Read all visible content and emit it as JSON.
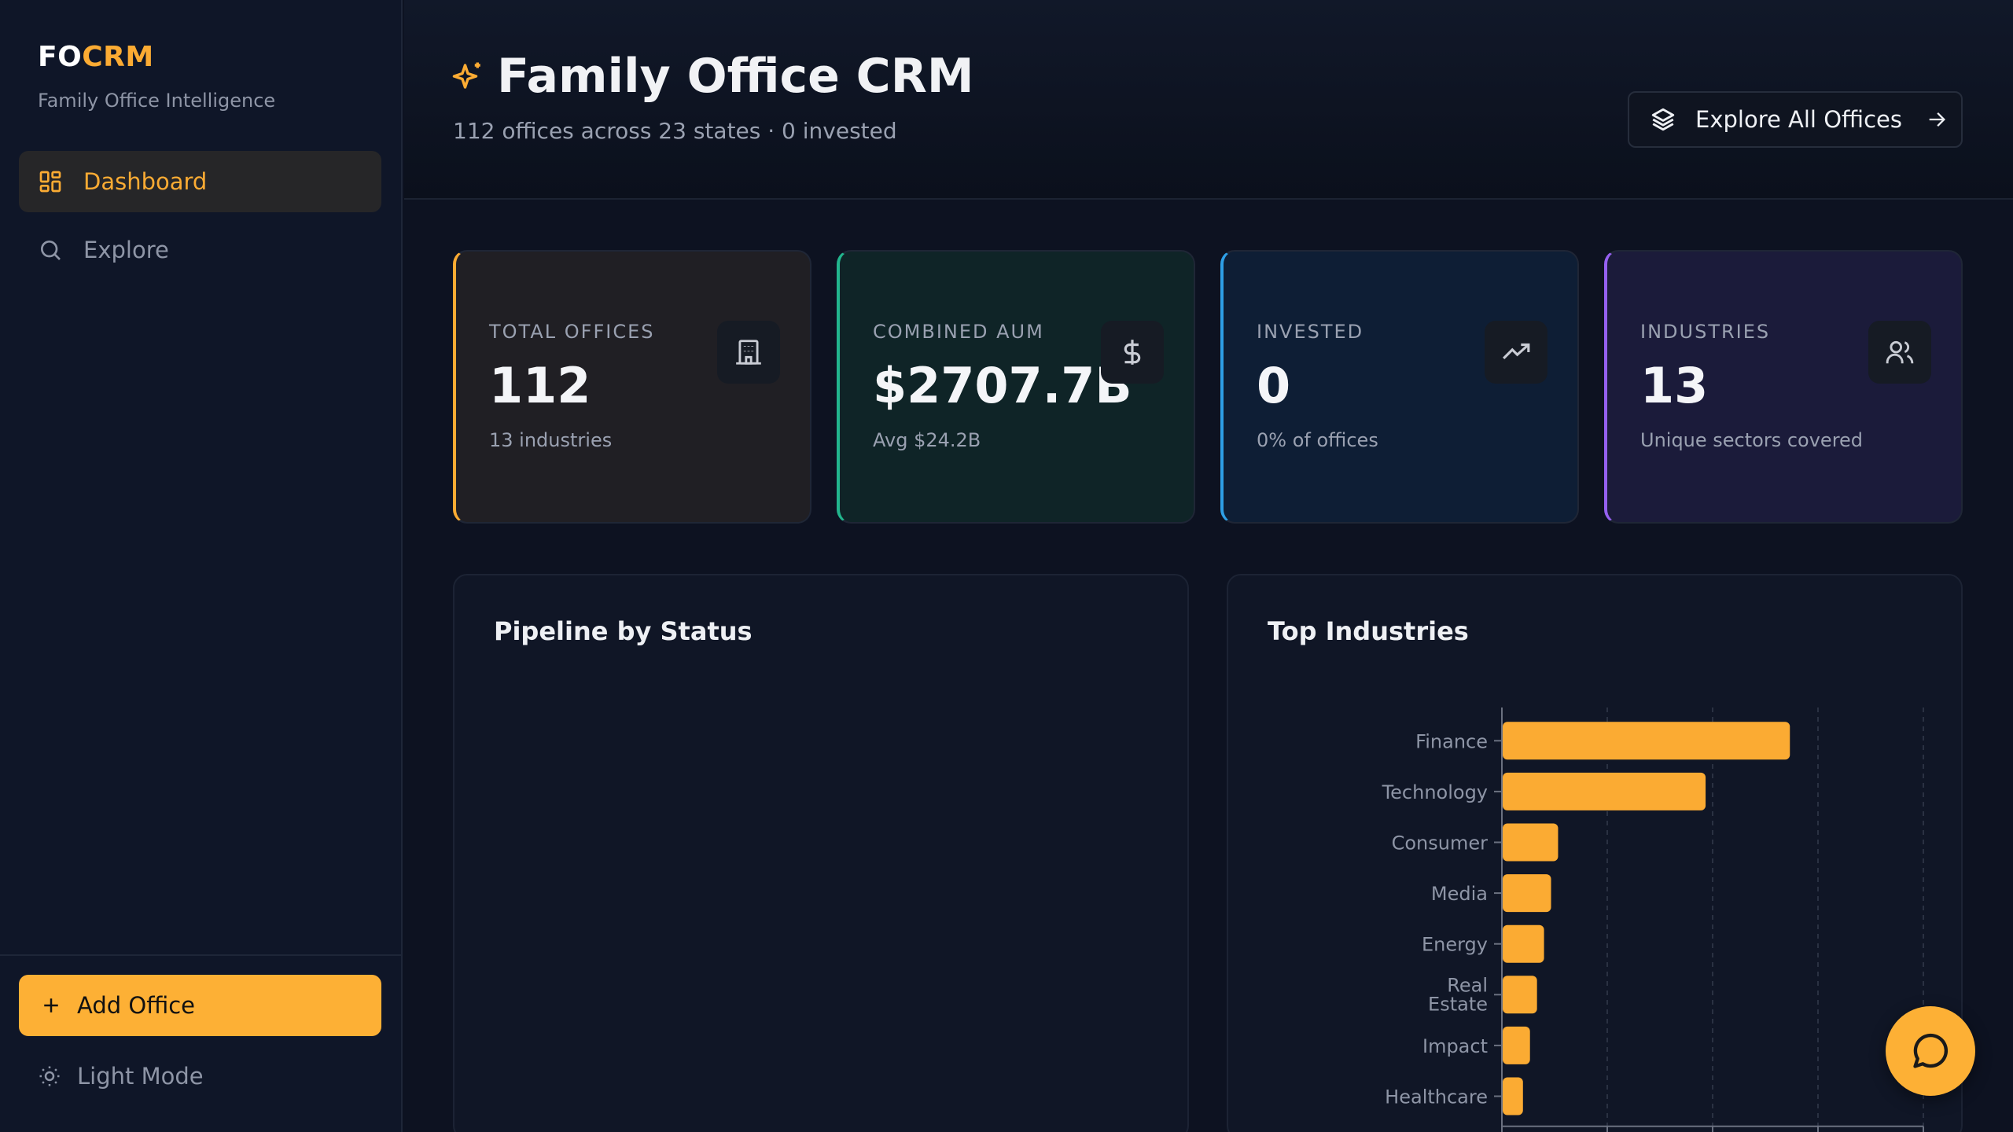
{
  "sidebar": {
    "brand_prefix": "FO",
    "brand_suffix": "CRM",
    "brand_subtitle": "Family Office Intelligence",
    "nav": [
      {
        "label": "Dashboard",
        "icon": "grid-icon",
        "active": true
      },
      {
        "label": "Explore",
        "icon": "search-icon",
        "active": false
      }
    ],
    "add_button": "Add Office",
    "theme_toggle": "Light Mode"
  },
  "header": {
    "title": "Family Office CRM",
    "subtitle": "112 offices across 23 states · 0 invested",
    "explore_button": "Explore All Offices"
  },
  "stats": [
    {
      "label": "TOTAL OFFICES",
      "value": "112",
      "sub": "13 industries",
      "icon": "building-icon",
      "accent": "#fbab33"
    },
    {
      "label": "COMBINED AUM",
      "value": "$2707.7B",
      "sub": "Avg $24.2B",
      "icon": "dollar-icon",
      "accent": "#22b58d"
    },
    {
      "label": "INVESTED",
      "value": "0",
      "sub": "0% of offices",
      "icon": "trending-up-icon",
      "accent": "#2e9fe6"
    },
    {
      "label": "INDUSTRIES",
      "value": "13",
      "sub": "Unique sectors covered",
      "icon": "users-icon",
      "accent": "#9560f0"
    }
  ],
  "panels": {
    "pipeline_title": "Pipeline by Status",
    "industries_title": "Top Industries"
  },
  "chart_data": {
    "type": "bar",
    "orientation": "horizontal",
    "categories": [
      "Finance",
      "Technology",
      "Consumer",
      "Media",
      "Energy",
      "Real Estate",
      "Impact",
      "Healthcare"
    ],
    "values": [
      41,
      29,
      8,
      7,
      6,
      5,
      4,
      3
    ],
    "xlim": [
      0,
      60
    ],
    "grid": true,
    "bar_color": "#fbab33"
  }
}
